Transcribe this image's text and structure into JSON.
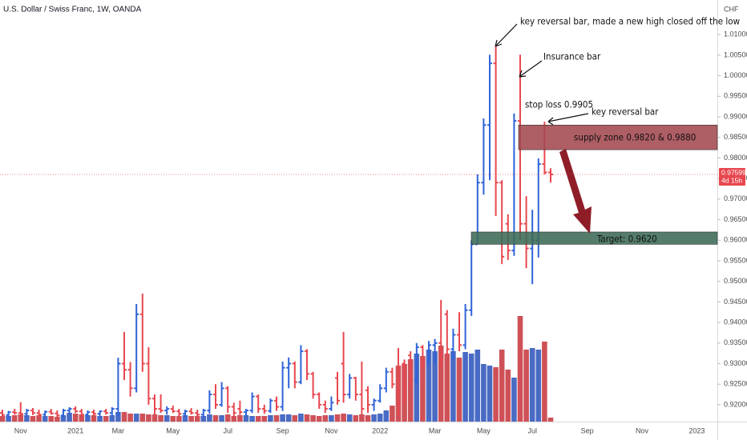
{
  "chart_data": {
    "type": "ohlc",
    "title": "U.S. Dollar / Swiss Franc, 1W, OANDA",
    "currency": "CHF",
    "categories": [
      null,
      null,
      null,
      "Nov",
      null,
      null,
      null,
      null,
      null,
      null,
      null,
      null,
      "2021",
      null,
      null,
      null,
      null,
      null,
      null,
      "Mar",
      null,
      null,
      null,
      null,
      null,
      null,
      null,
      null,
      "May",
      null,
      null,
      null,
      null,
      null,
      null,
      null,
      null,
      "Jul",
      null,
      null,
      null,
      null,
      null,
      null,
      null,
      null,
      "Sep",
      null,
      null,
      null,
      null,
      null,
      null,
      null,
      "Nov",
      null,
      null,
      null,
      null,
      null,
      null,
      null,
      "2022",
      null,
      null,
      null,
      null,
      null,
      null,
      null,
      null,
      "Mar",
      null,
      null,
      null,
      null,
      null,
      null,
      null,
      "May",
      null,
      null,
      null,
      null,
      null,
      null,
      null,
      "Jul",
      null,
      null,
      null,
      null,
      null,
      null,
      null,
      null,
      "Sep",
      null,
      null,
      null,
      null,
      null,
      null,
      null,
      null,
      "Nov",
      null,
      null,
      null,
      null,
      null,
      null,
      null,
      null,
      "2023",
      null,
      null,
      null
    ],
    "open": [
      0.918,
      0.9175,
      0.9182,
      0.918,
      0.9178,
      0.9186,
      0.918,
      0.9176,
      0.9183,
      0.9179,
      0.9174,
      0.9186,
      0.919,
      0.9184,
      0.9176,
      0.9182,
      0.9178,
      0.9184,
      0.918,
      0.919,
      0.93,
      0.9285,
      0.924,
      0.942,
      0.93,
      0.9215,
      0.919,
      0.9186,
      0.919,
      0.9184,
      0.9178,
      0.9184,
      0.918,
      0.9176,
      0.9186,
      0.9225,
      0.92,
      0.924,
      0.9195,
      0.919,
      0.9182,
      0.9186,
      0.922,
      0.919,
      0.9185,
      0.921,
      0.9195,
      0.929,
      0.93,
      0.9255,
      0.933,
      0.9275,
      0.9225,
      0.92,
      0.919,
      0.9265,
      0.93,
      0.9225,
      0.9265,
      0.9225,
      0.9235,
      0.92,
      0.921,
      0.924,
      0.928,
      0.926,
      0.93,
      0.932,
      0.926,
      0.934,
      0.9305,
      0.9345,
      0.935,
      0.942,
      0.9335,
      0.937,
      0.9345,
      0.943,
      0.959,
      0.974,
      0.988,
      1.003,
      0.974,
      0.964,
      0.9575,
      0.989,
      0.964,
      0.958,
      0.96,
      0.9785,
      0.9765,
      null,
      null,
      null,
      null,
      null,
      null,
      null,
      null,
      null,
      null,
      null,
      null,
      null,
      null,
      null,
      null,
      null,
      null,
      null,
      null,
      null,
      null,
      null,
      null,
      null,
      null,
      null
    ],
    "high": [
      0.9188,
      0.9185,
      0.919,
      0.9206,
      0.919,
      0.9192,
      0.9188,
      0.9186,
      0.919,
      0.9186,
      0.919,
      0.9194,
      0.9196,
      0.919,
      0.9186,
      0.9188,
      0.9186,
      0.919,
      0.9194,
      0.9314,
      0.9377,
      0.9304,
      0.9445,
      0.947,
      0.934,
      0.9225,
      0.9225,
      0.9196,
      0.9198,
      0.919,
      0.9188,
      0.9192,
      0.9188,
      0.919,
      0.9235,
      0.925,
      0.9255,
      0.9245,
      0.9205,
      0.921,
      0.919,
      0.923,
      0.9225,
      0.92,
      0.9215,
      0.922,
      0.9305,
      0.9315,
      0.9305,
      0.9345,
      0.9335,
      0.928,
      0.923,
      0.921,
      0.922,
      0.928,
      0.9377,
      0.9275,
      0.9268,
      0.9305,
      0.9245,
      0.9215,
      0.925,
      0.929,
      0.929,
      0.9338,
      0.931,
      0.933,
      0.935,
      0.9345,
      0.9355,
      0.936,
      0.9455,
      0.943,
      0.9385,
      0.9425,
      0.9445,
      0.96,
      0.976,
      0.9896,
      1.0051,
      1.0071,
      0.9746,
      0.9663,
      0.9908,
      1.0051,
      0.9707,
      0.9674,
      0.9799,
      0.9888,
      0.9775,
      null,
      null,
      null,
      null,
      null,
      null,
      null,
      null,
      null,
      null,
      null,
      null,
      null,
      null,
      null,
      null,
      null,
      null,
      null,
      null,
      null,
      null,
      null,
      null,
      null,
      null,
      null
    ],
    "low": [
      0.917,
      0.9168,
      0.9176,
      0.9172,
      0.917,
      0.9175,
      0.9172,
      0.917,
      0.9176,
      0.917,
      0.9168,
      0.9178,
      0.918,
      0.9172,
      0.9168,
      0.9174,
      0.917,
      0.9176,
      0.9174,
      0.9173,
      0.926,
      0.922,
      0.923,
      0.928,
      0.92,
      0.9175,
      0.918,
      0.9176,
      0.918,
      0.9172,
      0.917,
      0.9176,
      0.9172,
      0.917,
      0.9178,
      0.919,
      0.9195,
      0.918,
      0.917,
      0.9175,
      0.9172,
      0.918,
      0.918,
      0.9178,
      0.918,
      0.9185,
      0.9185,
      0.924,
      0.924,
      0.925,
      0.926,
      0.9215,
      0.919,
      0.918,
      0.9185,
      0.92,
      0.9205,
      0.9215,
      0.921,
      0.9175,
      0.918,
      0.9185,
      0.9205,
      0.923,
      0.924,
      0.9173,
      0.92,
      0.924,
      0.925,
      0.929,
      0.9295,
      0.93,
      0.929,
      0.932,
      0.931,
      0.933,
      0.9335,
      0.9416,
      0.959,
      0.9711,
      0.9746,
      0.9659,
      0.9542,
      0.9552,
      0.9562,
      0.96,
      0.9532,
      0.9493,
      0.9558,
      0.976,
      0.974,
      null,
      null,
      null,
      null,
      null,
      null,
      null,
      null,
      null,
      null,
      null,
      null,
      null,
      null,
      null,
      null,
      null,
      null,
      null,
      null,
      null,
      null,
      null,
      null,
      null,
      null,
      null
    ],
    "close": [
      0.9175,
      0.9182,
      0.918,
      0.9178,
      0.9186,
      0.918,
      0.9176,
      0.9183,
      0.9179,
      0.9174,
      0.9186,
      0.919,
      0.9184,
      0.9176,
      0.9182,
      0.9178,
      0.9184,
      0.918,
      0.919,
      0.93,
      0.9285,
      0.924,
      0.942,
      0.93,
      0.9215,
      0.919,
      0.9186,
      0.919,
      0.9184,
      0.9178,
      0.9184,
      0.918,
      0.9176,
      0.9186,
      0.9225,
      0.92,
      0.924,
      0.9195,
      0.918,
      0.9182,
      0.9186,
      0.922,
      0.919,
      0.9185,
      0.921,
      0.9195,
      0.929,
      0.93,
      0.9255,
      0.933,
      0.9275,
      0.9225,
      0.92,
      0.919,
      0.9205,
      0.921,
      0.9225,
      0.9265,
      0.9225,
      0.919,
      0.92,
      0.921,
      0.924,
      0.928,
      0.925,
      0.92,
      0.923,
      0.926,
      0.934,
      0.9305,
      0.9345,
      0.935,
      0.931,
      0.9335,
      0.937,
      0.9345,
      0.943,
      0.959,
      0.974,
      0.988,
      1.003,
      0.974,
      0.956,
      0.9575,
      0.989,
      0.964,
      0.958,
      0.96,
      0.9785,
      0.9765,
      0.976,
      null,
      null,
      null,
      null,
      null,
      null,
      null,
      null,
      null,
      null,
      null,
      null,
      null,
      null,
      null,
      null,
      null,
      null,
      null,
      null,
      null,
      null,
      null,
      null,
      null,
      null,
      null
    ],
    "volume": [
      7,
      7,
      8,
      9,
      8,
      7,
      8,
      7,
      7,
      6,
      8,
      11,
      10,
      9,
      8,
      8,
      7,
      7,
      8,
      12,
      12,
      10,
      10,
      10,
      9,
      9,
      8,
      8,
      7,
      7,
      8,
      7,
      7,
      7,
      9,
      8,
      8,
      9,
      7,
      8,
      8,
      7,
      7,
      7,
      8,
      8,
      9,
      9,
      8,
      10,
      9,
      8,
      7,
      8,
      8,
      9,
      10,
      9,
      8,
      9,
      8,
      9,
      10,
      14,
      20,
      70,
      72,
      78,
      85,
      82,
      90,
      88,
      95,
      85,
      88,
      80,
      87,
      85,
      90,
      72,
      70,
      68,
      90,
      65,
      55,
      132,
      90,
      92,
      90,
      100,
      5,
      null,
      null,
      null,
      null,
      null,
      null,
      null,
      null,
      null,
      null,
      null,
      null,
      null,
      null,
      null,
      null,
      null,
      null,
      null,
      null,
      null,
      null,
      null,
      null,
      null,
      null,
      null
    ],
    "up_color": "#2f63d8",
    "down_color": "#e8474f",
    "volume_up_color": "#4a6bc4",
    "volume_down_color": "#cf5158",
    "ylim": [
      0.9159,
      1.0184
    ],
    "yticks": [
      {
        "value": 0.92,
        "label": "0.92000"
      },
      {
        "value": 0.925,
        "label": "0.92500"
      },
      {
        "value": 0.93,
        "label": "0.93000"
      },
      {
        "value": 0.935,
        "label": "0.93500"
      },
      {
        "value": 0.94,
        "label": "0.94000"
      },
      {
        "value": 0.945,
        "label": "0.94500"
      },
      {
        "value": 0.95,
        "label": "0.95000"
      },
      {
        "value": 0.955,
        "label": "0.95500"
      },
      {
        "value": 0.96,
        "label": "0.96000"
      },
      {
        "value": 0.965,
        "label": "0.96500"
      },
      {
        "value": 0.97,
        "label": "0.97000"
      },
      {
        "value": 0.975,
        "label": "0.97500"
      },
      {
        "value": 0.98,
        "label": "0.98000"
      },
      {
        "value": 0.985,
        "label": "0.98500"
      },
      {
        "value": 0.99,
        "label": "0.99000"
      },
      {
        "value": 0.995,
        "label": "0.99500"
      },
      {
        "value": 1.0,
        "label": "1.00000"
      },
      {
        "value": 1.005,
        "label": "1.00500"
      },
      {
        "value": 1.01,
        "label": "1.01000"
      }
    ],
    "grid": false,
    "last_price": 0.97599,
    "countdown": "4d 15h",
    "supply_zone": [
      0.982,
      0.988
    ],
    "supply_zone_color": "#a34850",
    "target_zone": [
      0.959,
      0.962
    ],
    "target_zone_color": "#3b6a55",
    "annotations": {
      "key_reversal_high": "key reversal bar, made a new high closed off the low",
      "insurance": "Insurance bar",
      "stop_loss": "stop loss 0.9905",
      "key_reversal": "key reversal bar",
      "supply": "supply zone 0.9820 & 0.9880",
      "target": "Target: 0.9620"
    }
  }
}
